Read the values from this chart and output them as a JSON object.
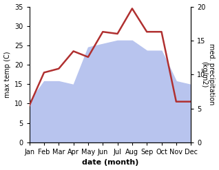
{
  "months": [
    "Jan",
    "Feb",
    "Mar",
    "Apr",
    "May",
    "Jun",
    "Jul",
    "Aug",
    "Sep",
    "Oct",
    "Nov",
    "Dec"
  ],
  "temperature": [
    9.5,
    18.0,
    19.0,
    23.5,
    22.0,
    28.5,
    28.0,
    34.5,
    28.5,
    28.5,
    10.5,
    10.5
  ],
  "precipitation": [
    6.0,
    9.0,
    9.0,
    8.5,
    14.0,
    14.5,
    15.0,
    15.0,
    13.5,
    13.5,
    9.0,
    8.5
  ],
  "temp_color": "#b03030",
  "precip_color": "#b8c4ee",
  "temp_ylim": [
    0,
    35
  ],
  "precip_ylim": [
    0,
    20
  ],
  "temp_yticks": [
    0,
    5,
    10,
    15,
    20,
    25,
    30,
    35
  ],
  "precip_yticks": [
    0,
    5,
    10,
    15,
    20
  ],
  "xlabel": "date (month)",
  "ylabel_left": "max temp (C)",
  "ylabel_right": "med. precipitation\n(kg/m2)",
  "bg_color": "#ffffff",
  "label_fontsize": 8,
  "tick_fontsize": 7
}
